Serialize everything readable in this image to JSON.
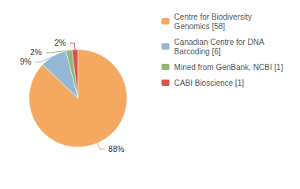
{
  "chart_data": {
    "type": "pie",
    "categories": [
      "Centre for Biodiversity\nGenomics [58]",
      "Canadian Centre for DNA\nBarcoding [6]",
      "Mined from GenBank, NCBI [1]",
      "CABI Bioscience [1]"
    ],
    "values": [
      88,
      9,
      2,
      2
    ],
    "value_labels": [
      "88%",
      "9%",
      "2%",
      "2%"
    ],
    "colors": [
      "#F4A860",
      "#94B8D4",
      "#8DB87A",
      "#D9534F"
    ],
    "data_labels": true,
    "legend": "upper right"
  }
}
